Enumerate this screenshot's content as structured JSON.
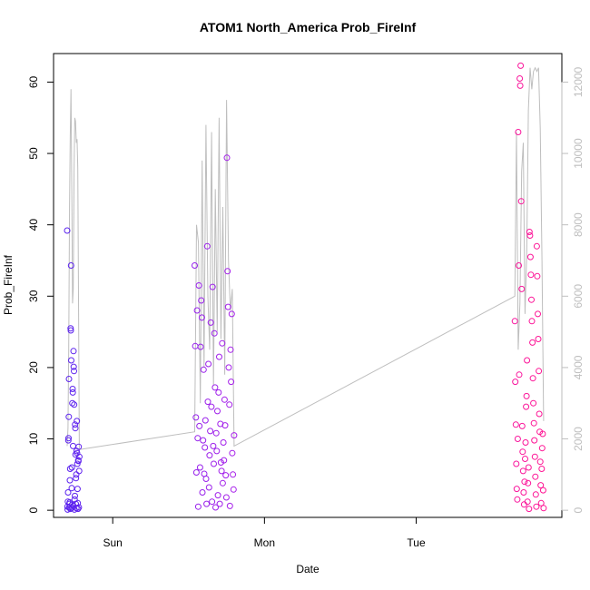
{
  "chart_data": {
    "type": "scatter",
    "title": "ATOM1 North_America Prob_FireInf",
    "xlabel": "Date",
    "ylabel": "Prob_FireInf",
    "x_ticks": [
      "Sun",
      "Mon",
      "Tue"
    ],
    "x_tick_positions_days": [
      0,
      1,
      2
    ],
    "xlim_days": [
      -0.39,
      2.96
    ],
    "ylim": [
      -1,
      64
    ],
    "y_ticks": [
      "0",
      "10",
      "20",
      "30",
      "40",
      "50",
      "60"
    ],
    "y_ticks_values": [
      0,
      10,
      20,
      30,
      40,
      50,
      60
    ],
    "y2_ticks": [
      "0",
      "2000",
      "4000",
      "6000",
      "8000",
      "10000",
      "12000"
    ],
    "y2_ticks_values": [
      0,
      2000,
      4000,
      6000,
      8000,
      10000,
      12000
    ],
    "y2lim": [
      -200,
      12800
    ],
    "grid": false,
    "legend": "none",
    "colors": {
      "line": "#bebebe",
      "point_start": "#5a22ee",
      "point_mid": "#c81ee8",
      "point_end": "#ff1493"
    },
    "clusters": [
      {
        "name": "",
        "x_start_days": -0.3,
        "x_end_days": -0.22,
        "values": [
          39.2,
          0.5,
          0.1,
          1.2,
          2.5,
          9.8,
          10.1,
          13.1,
          18.4,
          0.4,
          0.9,
          1.1,
          4.2,
          5.8,
          0.2,
          25.5,
          25.2,
          34.3,
          21.0,
          0.3,
          3.1,
          6.0,
          0.8,
          15.0,
          17.0,
          16.5,
          9.0,
          0.6,
          22.3,
          20.1,
          19.5,
          14.8,
          0.1,
          1.5,
          2.0,
          12.0,
          11.5,
          7.8,
          0.9,
          4.5,
          5.0,
          0.3,
          8.3,
          12.5,
          8.0,
          6.5,
          3.0,
          1.0,
          0.2,
          7.0,
          6.9,
          8.9,
          0.4,
          5.5,
          7.5
        ],
        "line_values": [
          1800,
          2300,
          4500,
          8500,
          10500,
          11800,
          9000,
          5800,
          6200,
          9500,
          11000,
          10900,
          10300,
          10400,
          9600,
          5500,
          1700
        ]
      },
      {
        "name": "",
        "x_start_days": 0.54,
        "x_end_days": 0.8,
        "values": [
          34.3,
          23.0,
          13.0,
          5.3,
          28.0,
          10.1,
          0.5,
          31.5,
          11.8,
          6.0,
          22.9,
          29.4,
          27.0,
          2.5,
          9.8,
          19.7,
          5.1,
          8.8,
          12.6,
          4.4,
          0.9,
          37.0,
          15.2,
          20.5,
          3.2,
          7.7,
          11.1,
          26.3,
          14.5,
          1.2,
          31.3,
          9.0,
          6.5,
          24.8,
          17.2,
          0.4,
          10.8,
          8.3,
          13.9,
          2.1,
          16.5,
          21.5,
          0.9,
          12.1,
          6.7,
          5.5,
          23.4,
          3.8,
          9.5,
          7.0,
          15.5,
          11.9,
          4.9,
          1.8,
          49.4,
          33.5,
          28.5,
          20.0,
          14.8,
          0.6,
          22.5,
          18.0,
          27.5,
          8.0,
          5.0,
          2.9,
          10.5
        ],
        "line_values": [
          2200,
          8000,
          7500,
          3000,
          9800,
          4000,
          10800,
          6000,
          4500,
          10600,
          3500,
          9000,
          5000,
          11000,
          4800,
          8500,
          3800,
          11500,
          7000,
          5600,
          6200,
          1800
        ]
      },
      {
        "name": "",
        "x_start_days": 2.65,
        "x_end_days": 2.84,
        "values": [
          26.5,
          18.0,
          12.0,
          6.5,
          3.0,
          1.5,
          10.0,
          53.0,
          34.3,
          19.0,
          60.5,
          59.5,
          62.3,
          43.3,
          31.0,
          11.8,
          8.2,
          5.5,
          2.5,
          0.8,
          4.0,
          7.2,
          9.5,
          14.5,
          16.0,
          21.0,
          1.2,
          3.8,
          6.0,
          0.2,
          39.0,
          38.5,
          35.5,
          33.0,
          29.5,
          26.5,
          23.5,
          18.5,
          15.0,
          12.2,
          9.8,
          7.5,
          4.7,
          2.2,
          0.5,
          37.0,
          32.8,
          27.5,
          24.0,
          19.5,
          13.5,
          11.0,
          6.8,
          3.5,
          1.0,
          5.8,
          8.7,
          10.7,
          2.8,
          0.3
        ],
        "line_values": [
          6000,
          10600,
          4500,
          5800,
          9500,
          10300,
          5500,
          7200,
          11200,
          12400,
          11800,
          12300,
          12400,
          12300,
          12400,
          10700,
          7000,
          2500
        ]
      }
    ]
  }
}
